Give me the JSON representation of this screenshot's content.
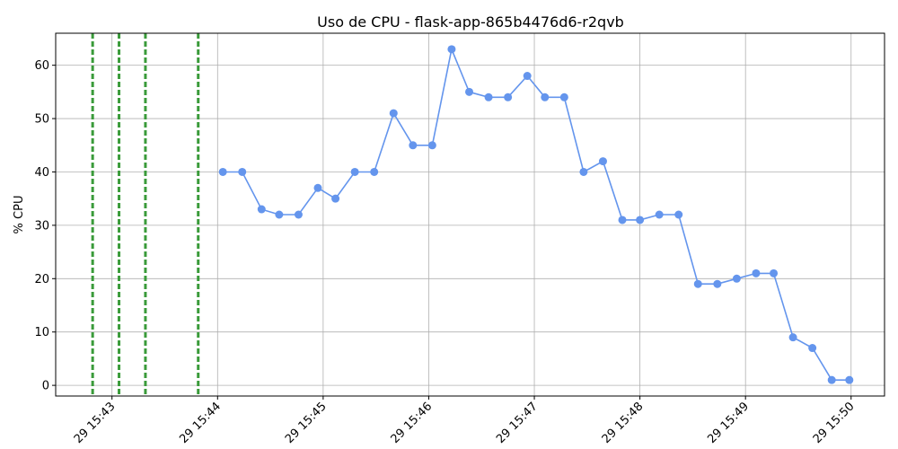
{
  "chart_data": {
    "type": "line",
    "title": "Uso de CPU - flask-app-865b4476d6-r2qvb",
    "xlabel": "",
    "ylabel": "% CPU",
    "grid": true,
    "x_tick_labels": [
      "29 15:43",
      "29 15:44",
      "29 15:45",
      "29 15:46",
      "29 15:47",
      "29 15:48",
      "29 15:49",
      "29 15:50"
    ],
    "x_ticks": [
      "15:43:00",
      "15:44:00",
      "15:45:00",
      "15:46:00",
      "15:47:00",
      "15:48:00",
      "15:49:00",
      "15:50:00"
    ],
    "x_range": [
      "15:42:28",
      "15:50:19"
    ],
    "ylim": [
      -2,
      66
    ],
    "y_ticks": [
      0,
      10,
      20,
      30,
      40,
      50,
      60
    ],
    "series": [
      {
        "name": "",
        "color": "#6495ED",
        "marker": "circle",
        "x": [
          "15:44:03",
          "15:44:14",
          "15:44:25",
          "15:44:35",
          "15:44:46",
          "15:44:57",
          "15:45:07",
          "15:45:18",
          "15:45:29",
          "15:45:40",
          "15:45:51",
          "15:46:02",
          "15:46:13",
          "15:46:23",
          "15:46:34",
          "15:46:45",
          "15:46:56",
          "15:47:06",
          "15:47:17",
          "15:47:28",
          "15:47:39",
          "15:47:50",
          "15:48:00",
          "15:48:11",
          "15:48:22",
          "15:48:33",
          "15:48:44",
          "15:48:55",
          "15:49:06",
          "15:49:16",
          "15:49:27",
          "15:49:38",
          "15:49:49",
          "15:49:59"
        ],
        "values": [
          40,
          40,
          33,
          32,
          32,
          37,
          35,
          40,
          40,
          51,
          45,
          45,
          63,
          55,
          54,
          54,
          58,
          54,
          54,
          40,
          42,
          31,
          31,
          32,
          32,
          19,
          19,
          20,
          21,
          21,
          9,
          7,
          1,
          1
        ]
      }
    ],
    "vertical_markers": {
      "color": "#3A9B3A",
      "style": "dashed",
      "x": [
        "15:42:49",
        "15:43:04",
        "15:43:19",
        "15:43:49"
      ]
    }
  }
}
